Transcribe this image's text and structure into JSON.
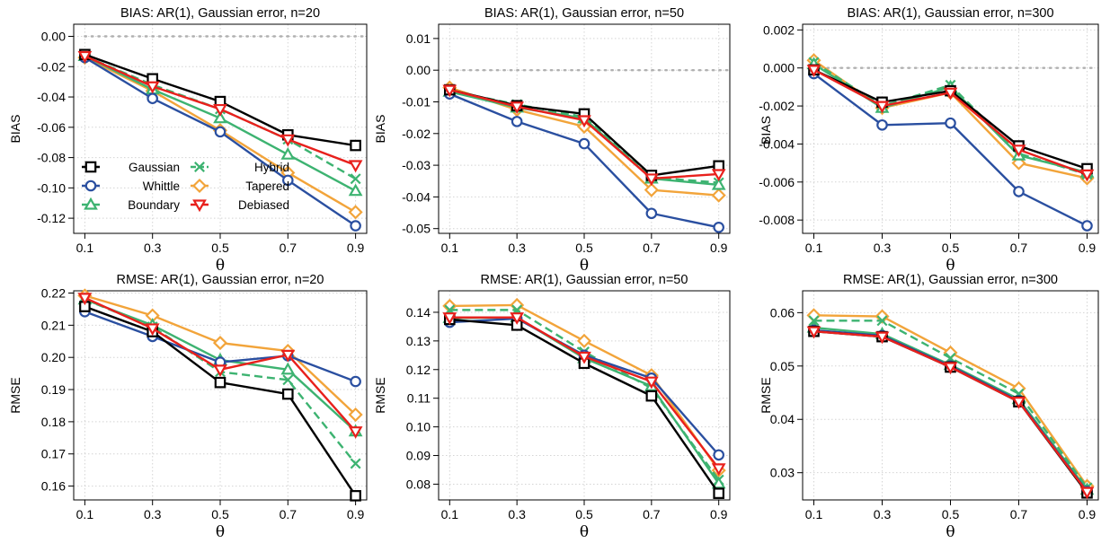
{
  "colors": {
    "Gaussian": "#000000",
    "Whittle": "#2a4fa0",
    "Boundary": "#3db371",
    "Hybrid": "#3db371",
    "Tapered": "#f2a43a",
    "Debiased": "#e8201c",
    "zero_line": "#b0b0b0",
    "grid": "#d4d4d4"
  },
  "markers": {
    "Gaussian": "square",
    "Whittle": "circle",
    "Boundary": "triangle-up",
    "Hybrid": "x",
    "Tapered": "diamond",
    "Debiased": "triangle-down"
  },
  "legend": {
    "panel": 0,
    "placement": "bottom-left",
    "columns": [
      [
        "Gaussian",
        "Whittle",
        "Boundary"
      ],
      [
        "Hybrid",
        "Tapered",
        "Debiased"
      ]
    ]
  },
  "chart_data": [
    {
      "type": "line",
      "title": "BIAS: AR(1), Gaussian error, n=20",
      "xlabel": "θ",
      "ylabel": "BIAS",
      "x": [
        0.1,
        0.3,
        0.5,
        0.7,
        0.9
      ],
      "ylim": [
        -0.13,
        0.008
      ],
      "yticks": [
        "0.00",
        "-0.02",
        "-0.04",
        "-0.06",
        "-0.08",
        "-0.10",
        "-0.12"
      ],
      "zero_line": true,
      "grid": true,
      "series": [
        {
          "name": "Gaussian",
          "values": [
            -0.012,
            -0.028,
            -0.043,
            -0.065,
            -0.072
          ]
        },
        {
          "name": "Whittle",
          "values": [
            -0.014,
            -0.041,
            -0.063,
            -0.095,
            -0.125
          ]
        },
        {
          "name": "Boundary",
          "values": [
            -0.013,
            -0.035,
            -0.054,
            -0.078,
            -0.102
          ]
        },
        {
          "name": "Hybrid",
          "values": [
            -0.013,
            -0.032,
            -0.048,
            -0.068,
            -0.094
          ]
        },
        {
          "name": "Tapered",
          "values": [
            -0.014,
            -0.036,
            -0.062,
            -0.09,
            -0.116
          ]
        },
        {
          "name": "Debiased",
          "values": [
            -0.013,
            -0.033,
            -0.048,
            -0.068,
            -0.085
          ]
        }
      ]
    },
    {
      "type": "line",
      "title": "BIAS: AR(1), Gaussian error, n=50",
      "xlabel": "θ",
      "ylabel": "BIAS",
      "x": [
        0.1,
        0.3,
        0.5,
        0.7,
        0.9
      ],
      "ylim": [
        -0.0515,
        0.0145
      ],
      "yticks": [
        "0.01",
        "0.00",
        "-0.01",
        "-0.02",
        "-0.03",
        "-0.04",
        "-0.05"
      ],
      "zero_line": true,
      "grid": true,
      "series": [
        {
          "name": "Gaussian",
          "values": [
            -0.0062,
            -0.0112,
            -0.0138,
            -0.0332,
            -0.0302
          ]
        },
        {
          "name": "Whittle",
          "values": [
            -0.0075,
            -0.0162,
            -0.0232,
            -0.0452,
            -0.0496
          ]
        },
        {
          "name": "Boundary",
          "values": [
            -0.0068,
            -0.0118,
            -0.0152,
            -0.0342,
            -0.0362
          ]
        },
        {
          "name": "Hybrid",
          "values": [
            -0.0065,
            -0.0108,
            -0.0148,
            -0.0338,
            -0.0355
          ]
        },
        {
          "name": "Tapered",
          "values": [
            -0.0055,
            -0.0125,
            -0.0178,
            -0.0378,
            -0.0395
          ]
        },
        {
          "name": "Debiased",
          "values": [
            -0.0062,
            -0.0115,
            -0.0158,
            -0.0342,
            -0.0328
          ]
        }
      ]
    },
    {
      "type": "line",
      "title": "BIAS: AR(1), Gaussian error, n=300",
      "xlabel": "θ",
      "ylabel": "BIAS",
      "x": [
        0.1,
        0.3,
        0.5,
        0.7,
        0.9
      ],
      "ylim": [
        -0.0087,
        0.0023
      ],
      "yticks": [
        "0.002",
        "0.000",
        "-0.002",
        "-0.004",
        "-0.006",
        "-0.008"
      ],
      "zero_line": true,
      "grid": true,
      "series": [
        {
          "name": "Gaussian",
          "values": [
            -0.0001,
            -0.0018,
            -0.0012,
            -0.0041,
            -0.0053
          ]
        },
        {
          "name": "Whittle",
          "values": [
            -0.0003,
            -0.003,
            -0.0029,
            -0.0065,
            -0.0083
          ]
        },
        {
          "name": "Boundary",
          "values": [
            0.0002,
            -0.0021,
            -0.001,
            -0.0046,
            -0.0055
          ]
        },
        {
          "name": "Hybrid",
          "values": [
            0.0003,
            -0.002,
            -0.0009,
            -0.0045,
            -0.0056
          ]
        },
        {
          "name": "Tapered",
          "values": [
            0.0004,
            -0.0021,
            -0.0013,
            -0.005,
            -0.0058
          ]
        },
        {
          "name": "Debiased",
          "values": [
            -0.0001,
            -0.002,
            -0.0013,
            -0.0043,
            -0.0056
          ]
        }
      ]
    },
    {
      "type": "line",
      "title": "RMSE: AR(1), Gaussian error, n=20",
      "xlabel": "θ",
      "ylabel": "RMSE",
      "x": [
        0.1,
        0.3,
        0.5,
        0.7,
        0.9
      ],
      "ylim": [
        0.1557,
        0.2207
      ],
      "yticks": [
        "0.22",
        "0.21",
        "0.20",
        "0.19",
        "0.18",
        "0.17",
        "0.16"
      ],
      "zero_line": false,
      "grid": true,
      "series": [
        {
          "name": "Gaussian",
          "values": [
            0.2158,
            0.208,
            0.1922,
            0.1886,
            0.157
          ]
        },
        {
          "name": "Whittle",
          "values": [
            0.2142,
            0.2065,
            0.1985,
            0.2005,
            0.1925
          ]
        },
        {
          "name": "Boundary",
          "values": [
            0.218,
            0.21,
            0.1992,
            0.1962,
            0.177
          ]
        },
        {
          "name": "Hybrid",
          "values": [
            0.218,
            0.2095,
            0.1955,
            0.193,
            0.167
          ]
        },
        {
          "name": "Tapered",
          "values": [
            0.2192,
            0.213,
            0.2045,
            0.202,
            0.1822
          ]
        },
        {
          "name": "Debiased",
          "values": [
            0.2185,
            0.209,
            0.1962,
            0.2008,
            0.177
          ]
        }
      ]
    },
    {
      "type": "line",
      "title": "RMSE: AR(1), Gaussian error, n=50",
      "xlabel": "θ",
      "ylabel": "RMSE",
      "x": [
        0.1,
        0.3,
        0.5,
        0.7,
        0.9
      ],
      "ylim": [
        0.0745,
        0.1475
      ],
      "yticks": [
        "0.14",
        "0.13",
        "0.12",
        "0.11",
        "0.10",
        "0.09",
        "0.08"
      ],
      "zero_line": false,
      "grid": true,
      "series": [
        {
          "name": "Gaussian",
          "values": [
            0.1375,
            0.1355,
            0.1222,
            0.1108,
            0.0768
          ]
        },
        {
          "name": "Whittle",
          "values": [
            0.1365,
            0.1378,
            0.125,
            0.117,
            0.0902
          ]
        },
        {
          "name": "Boundary",
          "values": [
            0.138,
            0.1382,
            0.124,
            0.1142,
            0.0802
          ]
        },
        {
          "name": "Hybrid",
          "values": [
            0.1408,
            0.1408,
            0.1262,
            0.1135,
            0.0815
          ]
        },
        {
          "name": "Tapered",
          "values": [
            0.1422,
            0.1425,
            0.13,
            0.118,
            0.0848
          ]
        },
        {
          "name": "Debiased",
          "values": [
            0.1382,
            0.1382,
            0.1245,
            0.1158,
            0.0855
          ]
        }
      ]
    },
    {
      "type": "line",
      "title": "RMSE: AR(1), Gaussian error, n=300",
      "xlabel": "θ",
      "ylabel": "RMSE",
      "x": [
        0.1,
        0.3,
        0.5,
        0.7,
        0.9
      ],
      "ylim": [
        0.0249,
        0.0641
      ],
      "yticks": [
        "0.06",
        "0.05",
        "0.04",
        "0.03"
      ],
      "zero_line": false,
      "grid": true,
      "series": [
        {
          "name": "Gaussian",
          "values": [
            0.0565,
            0.0555,
            0.0498,
            0.0433,
            0.0262
          ]
        },
        {
          "name": "Whittle",
          "values": [
            0.0567,
            0.0557,
            0.05,
            0.0435,
            0.0265
          ]
        },
        {
          "name": "Boundary",
          "values": [
            0.0572,
            0.056,
            0.0502,
            0.0438,
            0.0268
          ]
        },
        {
          "name": "Hybrid",
          "values": [
            0.0585,
            0.0585,
            0.0515,
            0.0448,
            0.0272
          ]
        },
        {
          "name": "Tapered",
          "values": [
            0.0595,
            0.0593,
            0.0525,
            0.0458,
            0.0275
          ]
        },
        {
          "name": "Debiased",
          "values": [
            0.0565,
            0.0555,
            0.0498,
            0.0433,
            0.0264
          ]
        }
      ]
    }
  ]
}
